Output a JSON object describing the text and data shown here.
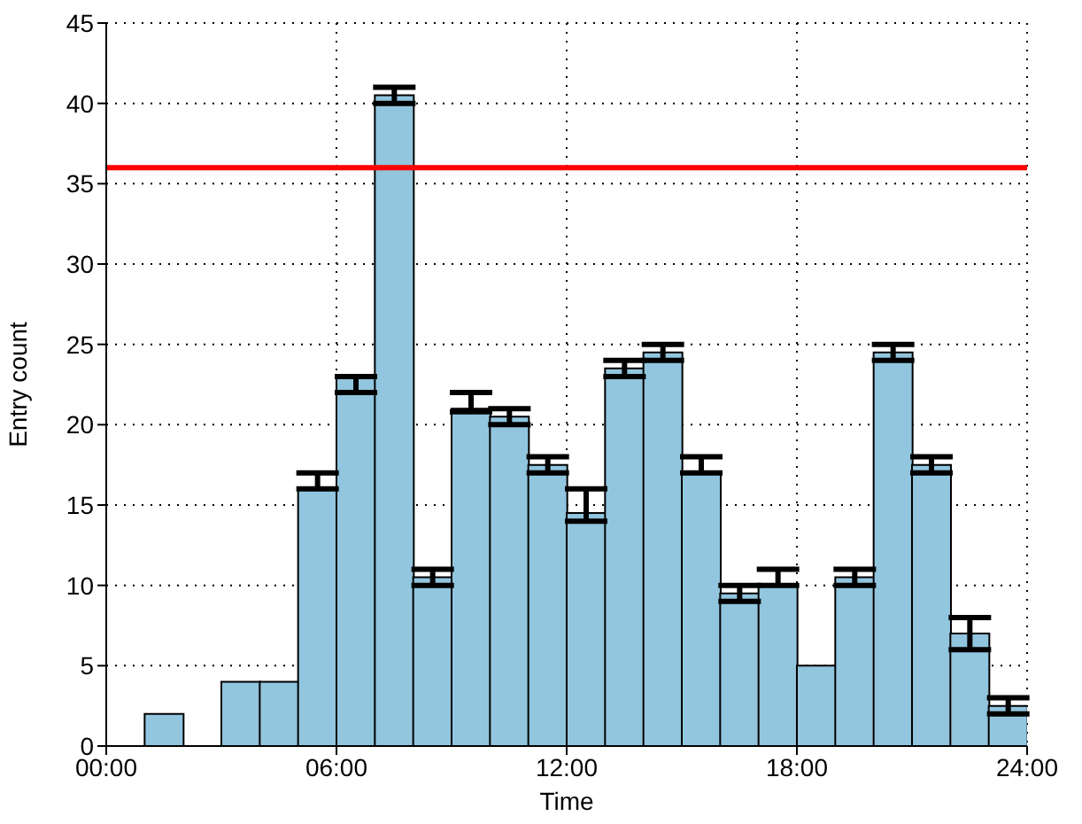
{
  "chart_data": {
    "type": "histogram",
    "xlabel": "Time",
    "ylabel": "Entry count",
    "bins": [
      0,
      1,
      2,
      3,
      4,
      5,
      6,
      7,
      8,
      9,
      10,
      11,
      12,
      13,
      14,
      15,
      16,
      17,
      18,
      19,
      20,
      21,
      22,
      23,
      24
    ],
    "values": [
      0,
      2,
      0,
      4,
      4,
      16,
      23,
      40.5,
      10.5,
      21,
      20.5,
      17.5,
      14.5,
      23.5,
      24.5,
      17,
      9.5,
      10,
      5,
      10.5,
      24.5,
      17.5,
      7,
      2.5
    ],
    "errors": [
      null,
      null,
      null,
      null,
      null,
      [
        16,
        17
      ],
      [
        22,
        23
      ],
      [
        40,
        41
      ],
      [
        10,
        11
      ],
      [
        20.8,
        22
      ],
      [
        20,
        21
      ],
      [
        17,
        18
      ],
      [
        14,
        16
      ],
      [
        23,
        24
      ],
      [
        24,
        25
      ],
      [
        17,
        18
      ],
      [
        9,
        10
      ],
      [
        10,
        11
      ],
      null,
      [
        10,
        11
      ],
      [
        24,
        25
      ],
      [
        17,
        18
      ],
      [
        6,
        8
      ],
      [
        2,
        3
      ]
    ],
    "color": "#92c5de",
    "xlim": [
      0,
      24
    ],
    "xticks": [
      {
        "value": 0,
        "label": "00:00"
      },
      {
        "value": 6,
        "label": "06:00"
      },
      {
        "value": 12,
        "label": "12:00"
      },
      {
        "value": 18,
        "label": "18:00"
      },
      {
        "value": 24,
        "label": "24:00"
      }
    ],
    "ylim": [
      0,
      45
    ],
    "yticks": [
      0,
      5,
      10,
      15,
      20,
      25,
      30,
      35,
      40,
      45
    ],
    "grid": true,
    "ref_lines": [
      {
        "axis": "y",
        "value": 36,
        "color": "#ff0000"
      }
    ]
  }
}
